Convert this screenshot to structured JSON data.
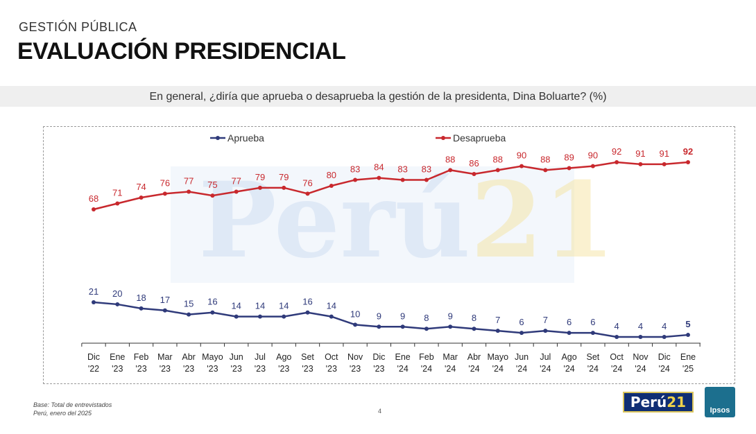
{
  "header": {
    "kicker": "GESTIÓN PÚBLICA",
    "title": "EVALUACIÓN PRESIDENCIAL"
  },
  "question": "En general, ¿diría que aprueba o desaprueba la gestión de la presidenta, Dina Boluarte? (%)",
  "watermark": {
    "part1": "Perú",
    "part2": "21"
  },
  "chart_data": {
    "type": "line",
    "title": "En general, ¿diría que aprueba o desaprueba la gestión de la presidenta, Dina Boluarte? (%)",
    "xlabel": "",
    "ylabel": "%",
    "ylim": [
      0,
      100
    ],
    "grid": false,
    "legend": "top-center",
    "categories": [
      [
        "Dic",
        "'22"
      ],
      [
        "Ene",
        "'23"
      ],
      [
        "Feb",
        "'23"
      ],
      [
        "Mar",
        "'23"
      ],
      [
        "Abr",
        "'23"
      ],
      [
        "Mayo",
        "'23"
      ],
      [
        "Jun",
        "'23"
      ],
      [
        "Jul",
        "'23"
      ],
      [
        "Ago",
        "'23"
      ],
      [
        "Set",
        "'23"
      ],
      [
        "Oct",
        "'23"
      ],
      [
        "Nov",
        "'23"
      ],
      [
        "Dic",
        "'23"
      ],
      [
        "Ene",
        "'24"
      ],
      [
        "Feb",
        "'24"
      ],
      [
        "Mar",
        "'24"
      ],
      [
        "Abr",
        "'24"
      ],
      [
        "Mayo",
        "'24"
      ],
      [
        "Jun",
        "'24"
      ],
      [
        "Jul",
        "'24"
      ],
      [
        "Ago",
        "'24"
      ],
      [
        "Set",
        "'24"
      ],
      [
        "Oct",
        "'24"
      ],
      [
        "Nov",
        "'24"
      ],
      [
        "Dic",
        "'24"
      ],
      [
        "Ene",
        "'25"
      ]
    ],
    "series": [
      {
        "name": "Aprueba",
        "color": "#2f3a7a",
        "values": [
          21,
          20,
          18,
          17,
          15,
          16,
          14,
          14,
          14,
          16,
          14,
          10,
          9,
          9,
          8,
          9,
          8,
          7,
          6,
          7,
          6,
          6,
          4,
          4,
          4,
          5
        ]
      },
      {
        "name": "Desaprueba",
        "color": "#c8282d",
        "values": [
          68,
          71,
          74,
          76,
          77,
          75,
          77,
          79,
          79,
          76,
          80,
          83,
          84,
          83,
          83,
          88,
          86,
          88,
          90,
          88,
          89,
          90,
          92,
          91,
          91,
          92
        ]
      }
    ]
  },
  "footer": {
    "base_line1": "Base: Total de entrevistados",
    "base_line2": "Perú, enero del 2025",
    "page": "4",
    "brand": {
      "part1": "Perú",
      "part2": "21"
    },
    "ipsos": "Ipsos"
  }
}
